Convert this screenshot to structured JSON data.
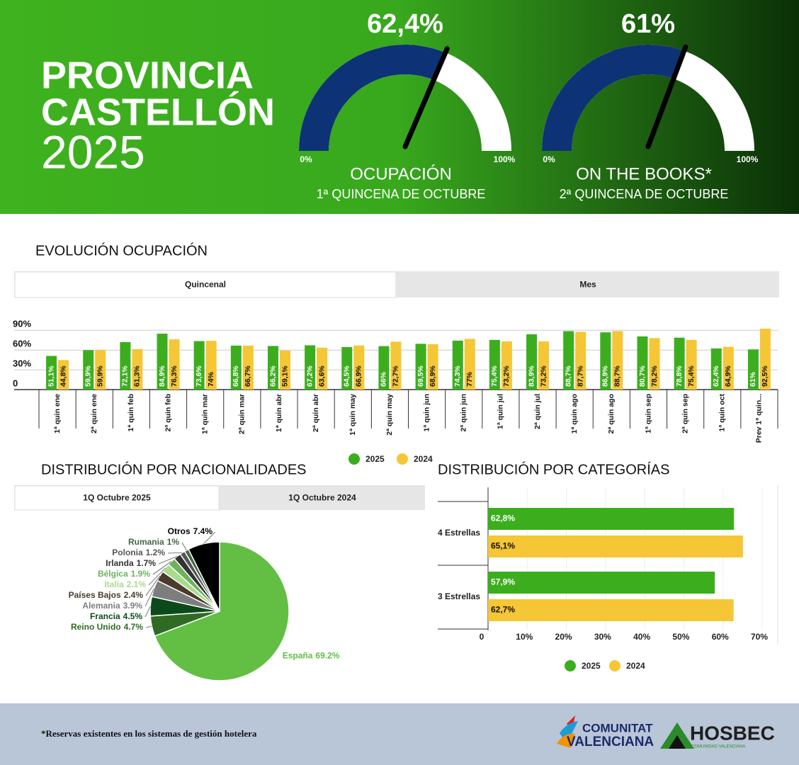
{
  "header": {
    "title_lines": [
      "PROVINCIA",
      "CASTELLÓN",
      "2025"
    ]
  },
  "chart_data": [
    {
      "type": "gauge",
      "value": 62.4,
      "value_label": "62,4%",
      "lim": [
        0,
        100
      ],
      "ticks": [
        {
          "value": 0,
          "label": "0%"
        },
        {
          "value": 100,
          "label": "100%"
        }
      ],
      "title": "OCUPACIÓN",
      "subtitle": "1ª QUINCENA DE OCTUBRE",
      "color": "#0d3275"
    },
    {
      "type": "gauge",
      "value": 61,
      "value_label": "61%",
      "lim": [
        0,
        100
      ],
      "ticks": [
        {
          "value": 0,
          "label": "0%"
        },
        {
          "value": 100,
          "label": "100%"
        }
      ],
      "title": "ON THE BOOKS*",
      "subtitle": "2ª QUINCENA DE OCTUBRE",
      "color": "#0d3275"
    },
    {
      "type": "bar",
      "title": "EVOLUCIÓN OCUPACIÓN",
      "tabs": [
        "Quincenal",
        "Mes"
      ],
      "categories": [
        "1ª quin ene",
        "2ª quin ene",
        "1ª quin feb",
        "2ª quin feb",
        "1ª quin mar",
        "2ª quin mar",
        "1ª quin abr",
        "2ª quin abr",
        "1ª quin may",
        "2ª quin may",
        "1ª quin jun",
        "2ª quin jun",
        "1ª quin jul",
        "2ª quin jul",
        "1ª quin ago",
        "2ª quin ago",
        "1ª quin sep",
        "2ª quin sep",
        "1ª quin oct",
        "Prev 1ª quin..."
      ],
      "series": [
        {
          "name": "2025",
          "color": "#3cae1e",
          "values": [
            51.1,
            59.9,
            72.1,
            84.9,
            73.6,
            66.8,
            66.2,
            67.2,
            64.5,
            66,
            69.5,
            74.3,
            75.4,
            83.9,
            88.7,
            86.9,
            80.7,
            78.8,
            62.4,
            61
          ],
          "value_labels": [
            "51,1%",
            "59,9%",
            "72,1%",
            "84,9%",
            "73,6%",
            "66,8%",
            "66,2%",
            "67,2%",
            "64,5%",
            "66%",
            "69,5%",
            "74,3%",
            "75,4%",
            "83,9%",
            "88,7%",
            "86,9%",
            "80,7%",
            "78,8%",
            "62,4%",
            "61%"
          ]
        },
        {
          "name": "2024",
          "color": "#f5c636",
          "values": [
            44.8,
            59.9,
            61.3,
            76.3,
            74,
            66.7,
            59.1,
            63.6,
            66.9,
            72.7,
            68.9,
            77,
            73.2,
            73.2,
            87.7,
            88.7,
            78.2,
            75.4,
            64.9,
            92.5
          ],
          "value_labels": [
            "44,8%",
            "59,9%",
            "61,3%",
            "76,3%",
            "74%",
            "66,7%",
            "59,1%",
            "63,6%",
            "66,9%",
            "72,7%",
            "68,9%",
            "77%",
            "73,2%",
            "73,2%",
            "87,7%",
            "88,7%",
            "78,2%",
            "75,4%",
            "64,9%",
            "92,5%"
          ]
        }
      ],
      "ylim": [
        0,
        100
      ],
      "yticks": [
        {
          "value": 0,
          "label": "0"
        },
        {
          "value": 30,
          "label": "30%"
        },
        {
          "value": 60,
          "label": "60%"
        },
        {
          "value": 90,
          "label": "90%"
        }
      ],
      "grid": true,
      "legend": "bottom"
    },
    {
      "type": "pie",
      "title": "DISTRIBUCIÓN POR NACIONALIDADES",
      "tabs": [
        "1Q Octubre 2025",
        "1Q Octubre 2024"
      ],
      "categories": [
        "España",
        "Reino Unido",
        "Francia",
        "Alemania",
        "Países Bajos",
        "Italia",
        "Bélgica",
        "Irlanda",
        "Polonia",
        "Rumania",
        "Otros"
      ],
      "values": [
        69.2,
        4.7,
        4.5,
        3.9,
        2.4,
        2.1,
        1.9,
        1.7,
        1.2,
        1,
        7.4
      ],
      "value_labels": [
        "69.2%",
        "4.7%",
        "4.5%",
        "3.9%",
        "2.4%",
        "2.1%",
        "1.9%",
        "1.7%",
        "1.2%",
        "1%",
        "7.4%"
      ],
      "colors": [
        "#62bf44",
        "#2f6b25",
        "#0d4a1b",
        "#7d7d7d",
        "#4b3b2b",
        "#a8dc8c",
        "#6fb25e",
        "#333333",
        "#555555",
        "#3f6a3f",
        "#000000"
      ]
    },
    {
      "type": "hbar",
      "title": "DISTRIBUCIÓN POR CATEGORÍAS",
      "categories": [
        "4 Estrellas",
        "3 Estrellas"
      ],
      "series": [
        {
          "name": "2025",
          "color": "#3cae1e",
          "values": [
            62.8,
            57.9
          ],
          "value_labels": [
            "62,8%",
            "57,9%"
          ]
        },
        {
          "name": "2024",
          "color": "#f5c636",
          "values": [
            65.1,
            62.7
          ],
          "value_labels": [
            "65,1%",
            "62,7%"
          ]
        }
      ],
      "xlim": [
        0,
        70
      ],
      "xticks": [
        {
          "value": 0,
          "label": "0"
        },
        {
          "value": 10,
          "label": "10%"
        },
        {
          "value": 20,
          "label": "20%"
        },
        {
          "value": 30,
          "label": "30%"
        },
        {
          "value": 40,
          "label": "40%"
        },
        {
          "value": 50,
          "label": "50%"
        },
        {
          "value": 60,
          "label": "60%"
        },
        {
          "value": 70,
          "label": "70%"
        }
      ],
      "grid": true,
      "legend": "bottom"
    }
  ],
  "footer": {
    "note": "*Reservas existentes en los sistemas de gestión hotelera",
    "logos": [
      "COMUNITAT",
      "VALENCIANA",
      "HOSBEC",
      "COMUNIDAD VALENCIANA"
    ]
  }
}
